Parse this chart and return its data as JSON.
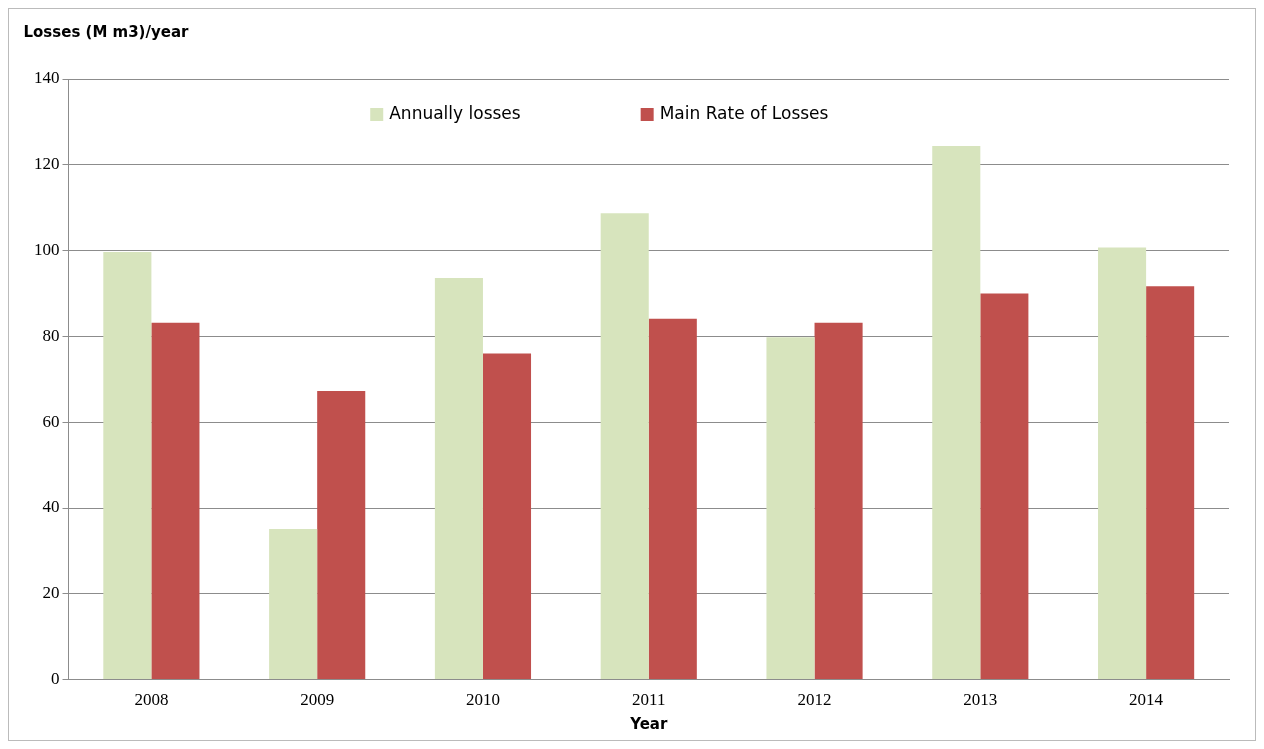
{
  "chart_data": {
    "type": "bar",
    "xlabel": "Year",
    "ylabel": "Losses (M m3)/year",
    "categories": [
      "2008",
      "2009",
      "2010",
      "2011",
      "2012",
      "2013",
      "2014"
    ],
    "series": [
      {
        "name": "Annually losses",
        "color": "#d7e4bd",
        "values": [
          99.7,
          35.1,
          93.6,
          108.7,
          79.8,
          124.4,
          100.7
        ]
      },
      {
        "name": "Main Rate of Losses",
        "color": "#c0504d",
        "values": [
          83.2,
          67.3,
          76.0,
          84.1,
          83.2,
          90.0,
          91.7
        ]
      }
    ],
    "ylim": [
      0,
      140
    ],
    "yticks": [
      0,
      20,
      40,
      60,
      80,
      100,
      120,
      140
    ],
    "grid": "y",
    "legend": "top"
  }
}
